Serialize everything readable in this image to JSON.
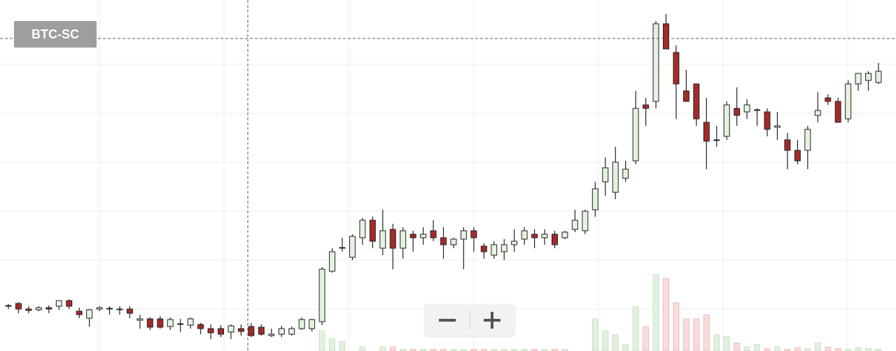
{
  "chart_data": {
    "type": "candlestick",
    "title": "BTC-SC",
    "up_color": "#e3f3df",
    "down_color": "#a52a2a",
    "up_volume_color": "#e2f1df",
    "down_volume_color": "#f7dcdc",
    "ylim": [
      0,
      500
    ],
    "y2lim": [
      0,
      100
    ],
    "open": [
      62,
      66,
      58,
      57,
      60,
      62,
      70,
      55,
      45,
      58,
      58,
      58,
      58,
      42,
      44,
      44,
      33,
      36,
      35,
      36,
      30,
      30,
      25,
      30,
      33,
      32,
      20,
      22,
      22,
      30,
      30,
      40,
      112,
      145,
      132,
      160,
      185,
      145,
      172,
      145,
      165,
      160,
      170,
      160,
      150,
      158,
      170,
      148,
      135,
      140,
      150,
      158,
      165,
      160,
      165,
      160,
      172,
      170,
      200,
      240,
      225,
      245,
      270,
      350,
      355,
      466,
      425,
      370,
      380,
      325,
      300,
      305,
      345,
      340,
      342,
      340,
      318,
      300,
      285,
      285,
      335,
      360,
      355,
      330,
      380,
      385,
      382
    ],
    "high": [
      65,
      68,
      62,
      62,
      63,
      70,
      72,
      60,
      58,
      62,
      62,
      62,
      62,
      50,
      46,
      48,
      46,
      44,
      46,
      38,
      36,
      35,
      36,
      36,
      38,
      36,
      30,
      34,
      33,
      46,
      44,
      118,
      145,
      160,
      165,
      188,
      190,
      200,
      180,
      175,
      170,
      175,
      185,
      175,
      160,
      175,
      175,
      152,
      155,
      158,
      172,
      175,
      172,
      172,
      170,
      170,
      200,
      200,
      240,
      275,
      290,
      270,
      370,
      360,
      470,
      480,
      435,
      400,
      380,
      360,
      320,
      355,
      375,
      358,
      345,
      345,
      340,
      310,
      300,
      320,
      368,
      365,
      360,
      385,
      395,
      398,
      410
    ],
    "low": [
      58,
      52,
      52,
      55,
      52,
      57,
      58,
      45,
      33,
      55,
      50,
      50,
      45,
      30,
      28,
      30,
      28,
      25,
      30,
      22,
      15,
      18,
      15,
      20,
      18,
      20,
      18,
      18,
      20,
      28,
      26,
      35,
      110,
      140,
      128,
      150,
      145,
      135,
      115,
      130,
      140,
      150,
      155,
      130,
      145,
      115,
      140,
      130,
      130,
      128,
      140,
      150,
      145,
      150,
      145,
      158,
      168,
      165,
      190,
      220,
      215,
      240,
      265,
      320,
      345,
      430,
      330,
      355,
      320,
      258,
      290,
      300,
      320,
      330,
      320,
      305,
      300,
      258,
      265,
      258,
      325,
      350,
      325,
      325,
      370,
      370,
      380
    ],
    "close": [
      63,
      58,
      56,
      60,
      58,
      70,
      62,
      50,
      57,
      60,
      59,
      57,
      52,
      44,
      32,
      32,
      43,
      37,
      44,
      30,
      24,
      22,
      34,
      26,
      20,
      22,
      22,
      30,
      30,
      43,
      43,
      115,
      140,
      146,
      162,
      185,
      155,
      170,
      145,
      170,
      160,
      165,
      160,
      150,
      158,
      170,
      160,
      140,
      150,
      150,
      155,
      170,
      160,
      165,
      150,
      168,
      185,
      198,
      230,
      260,
      268,
      258,
      345,
      345,
      466,
      430,
      380,
      355,
      330,
      298,
      300,
      350,
      335,
      350,
      343,
      315,
      320,
      285,
      270,
      315,
      342,
      355,
      325,
      380,
      395,
      395,
      398
    ],
    "volume": [
      0,
      0,
      0,
      0,
      0,
      0,
      0,
      0,
      0,
      0,
      0,
      0,
      0,
      0,
      0,
      0,
      0,
      0,
      0,
      0,
      0,
      0,
      0,
      0,
      0,
      0,
      0,
      0,
      0,
      0,
      0,
      25,
      15,
      12,
      0,
      5,
      0,
      5,
      5,
      2,
      2,
      2,
      2,
      2,
      2,
      2,
      2,
      2,
      2,
      2,
      2,
      2,
      2,
      2,
      2,
      2,
      0,
      0,
      40,
      25,
      20,
      8,
      55,
      30,
      95,
      90,
      60,
      40,
      40,
      45,
      20,
      18,
      10,
      5,
      8,
      3,
      5,
      2,
      4,
      3,
      10,
      5,
      3,
      2,
      4,
      3,
      2
    ]
  }
}
